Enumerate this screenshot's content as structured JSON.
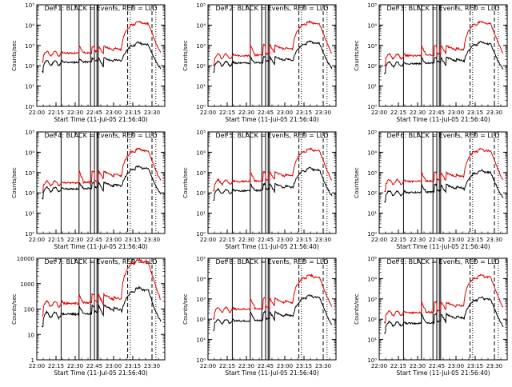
{
  "colors": {
    "events": "#000000",
    "lld": "#dd0000",
    "axis": "#000000",
    "background": "#ffffff"
  },
  "chart_data": [
    {
      "type": "line",
      "title": "Det 1: BLACK = Events, RED = LLD",
      "xlabel": "Start Time (11-Jul-05 21:56:40)",
      "ylabel": "Counts/sec",
      "yscale": "log",
      "ylim": [
        1,
        100000
      ],
      "ytick_labels": [
        "10⁰",
        "10¹",
        "10²",
        "10³",
        "10⁴",
        "10⁵"
      ],
      "xlim": [
        "22:00",
        "23:40"
      ],
      "xtick_labels": [
        "22:00",
        "22:15",
        "22:30",
        "22:45",
        "23:00",
        "23:15",
        "23:30"
      ],
      "series": [
        {
          "name": "Events",
          "color": "#000000",
          "start": "22:04",
          "end": "23:37",
          "base": 140,
          "burst": 250,
          "peak": 1400
        },
        {
          "name": "LLD",
          "color": "#dd0000",
          "start": "22:04",
          "end": "23:37",
          "base": 400,
          "burst": 1000,
          "peak": 15000
        }
      ]
    },
    {
      "type": "line",
      "title": "Det 2: BLACK = Events, RED = LLD",
      "xlabel": "Start Time (11-Jul-05 21:56:40)",
      "ylabel": "Counts/sec",
      "yscale": "log",
      "ylim": [
        1,
        100000
      ],
      "ytick_labels": [
        "10⁰",
        "10¹",
        "10²",
        "10³",
        "10⁴",
        "10⁵"
      ],
      "xlim": [
        "22:00",
        "23:40"
      ],
      "xtick_labels": [
        "22:00",
        "22:15",
        "22:30",
        "22:45",
        "23:00",
        "23:15",
        "23:30"
      ],
      "series": [
        {
          "name": "Events",
          "color": "#000000",
          "start": "22:04",
          "end": "23:37",
          "base": 130,
          "burst": 300,
          "peak": 1600
        },
        {
          "name": "LLD",
          "color": "#dd0000",
          "start": "22:04",
          "end": "23:37",
          "base": 300,
          "burst": 1200,
          "peak": 15000
        }
      ]
    },
    {
      "type": "line",
      "title": "Det 3: BLACK = Events, RED = LLD",
      "xlabel": "Start Time (11-Jul-05 21:56:40)",
      "ylabel": "Counts/sec",
      "yscale": "log",
      "ylim": [
        1,
        100000
      ],
      "ytick_labels": [
        "10⁰",
        "10¹",
        "10²",
        "10³",
        "10⁴",
        "10⁵"
      ],
      "xlim": [
        "22:00",
        "23:40"
      ],
      "xtick_labels": [
        "22:00",
        "22:15",
        "22:30",
        "22:45",
        "23:00",
        "23:15",
        "23:30"
      ],
      "series": [
        {
          "name": "Events",
          "color": "#000000",
          "start": "22:04",
          "end": "23:37",
          "base": 120,
          "burst": 280,
          "peak": 1500
        },
        {
          "name": "LLD",
          "color": "#dd0000",
          "start": "22:04",
          "end": "23:37",
          "base": 300,
          "burst": 1100,
          "peak": 15000
        }
      ]
    },
    {
      "type": "line",
      "title": "Det 4: BLACK = Events, RED = LLD",
      "xlabel": "Start Time (11-Jul-05 21:56:40)",
      "ylabel": "Counts/sec",
      "yscale": "log",
      "ylim": [
        1,
        100000
      ],
      "ytick_labels": [
        "10⁰",
        "10¹",
        "10²",
        "10³",
        "10⁴",
        "10⁵"
      ],
      "xlim": [
        "22:00",
        "23:40"
      ],
      "xtick_labels": [
        "22:00",
        "22:15",
        "22:30",
        "22:45",
        "23:00",
        "23:15",
        "23:30"
      ],
      "series": [
        {
          "name": "Events",
          "color": "#000000",
          "start": "22:04",
          "end": "23:37",
          "base": 150,
          "burst": 350,
          "peak": 2000
        },
        {
          "name": "LLD",
          "color": "#dd0000",
          "start": "22:04",
          "end": "23:37",
          "base": 300,
          "burst": 1300,
          "peak": 15000
        }
      ]
    },
    {
      "type": "line",
      "title": "Det 5: BLACK = Events, RED = LLD",
      "xlabel": "Start Time (11-Jul-05 21:56:40)",
      "ylabel": "Counts/sec",
      "yscale": "log",
      "ylim": [
        1,
        100000
      ],
      "ytick_labels": [
        "10⁰",
        "10¹",
        "10²",
        "10³",
        "10⁴",
        "10⁵"
      ],
      "xlim": [
        "22:00",
        "23:40"
      ],
      "xtick_labels": [
        "22:00",
        "22:15",
        "22:30",
        "22:45",
        "23:00",
        "23:15",
        "23:30"
      ],
      "series": [
        {
          "name": "Events",
          "color": "#000000",
          "start": "22:04",
          "end": "23:37",
          "base": 120,
          "burst": 300,
          "peak": 1700
        },
        {
          "name": "LLD",
          "color": "#dd0000",
          "start": "22:04",
          "end": "23:37",
          "base": 350,
          "burst": 1200,
          "peak": 15000
        }
      ]
    },
    {
      "type": "line",
      "title": "Det 6: BLACK = Events, RED = LLD",
      "xlabel": "Start Time (11-Jul-05 21:56:40)",
      "ylabel": "Counts/sec",
      "yscale": "log",
      "ylim": [
        1,
        100000
      ],
      "ytick_labels": [
        "10⁰",
        "10¹",
        "10²",
        "10³",
        "10⁴",
        "10⁵"
      ],
      "xlim": [
        "22:00",
        "23:40"
      ],
      "xtick_labels": [
        "22:00",
        "22:15",
        "22:30",
        "22:45",
        "23:00",
        "23:15",
        "23:30"
      ],
      "series": [
        {
          "name": "Events",
          "color": "#000000",
          "start": "22:04",
          "end": "23:37",
          "base": 100,
          "burst": 280,
          "peak": 1300
        },
        {
          "name": "LLD",
          "color": "#dd0000",
          "start": "22:04",
          "end": "23:37",
          "base": 350,
          "burst": 1100,
          "peak": 15000
        }
      ]
    },
    {
      "type": "line",
      "title": "Det 7: BLACK = Events, RED = LLD",
      "xlabel": "Start Time (11-Jul-05 21:56:40)",
      "ylabel": "Counts/sec",
      "yscale": "log",
      "ylim": [
        1,
        10000
      ],
      "ytick_labels": [
        "1",
        "10",
        "100",
        "1000",
        "10000"
      ],
      "xlim": [
        "22:00",
        "23:40"
      ],
      "xtick_labels": [
        "22:00",
        "22:15",
        "22:30",
        "22:45",
        "23:00",
        "23:15",
        "23:30"
      ],
      "series": [
        {
          "name": "Events",
          "color": "#000000",
          "start": "22:04",
          "end": "23:37",
          "base": 60,
          "burst": 150,
          "peak": 700
        },
        {
          "name": "LLD",
          "color": "#dd0000",
          "start": "22:04",
          "end": "23:37",
          "base": 160,
          "burst": 400,
          "peak": 9000
        }
      ]
    },
    {
      "type": "line",
      "title": "Det 8: BLACK = Events, RED = LLD",
      "xlabel": "Start Time (11-Jul-05 21:56:40)",
      "ylabel": "Counts/sec",
      "yscale": "log",
      "ylim": [
        1,
        100000
      ],
      "ytick_labels": [
        "10⁰",
        "10¹",
        "10²",
        "10³",
        "10⁴",
        "10⁵"
      ],
      "xlim": [
        "22:00",
        "23:40"
      ],
      "xtick_labels": [
        "22:00",
        "22:15",
        "22:30",
        "22:45",
        "23:00",
        "23:15",
        "23:30"
      ],
      "series": [
        {
          "name": "Events",
          "color": "#000000",
          "start": "22:04",
          "end": "23:37",
          "base": 80,
          "burst": 250,
          "peak": 1500
        },
        {
          "name": "LLD",
          "color": "#dd0000",
          "start": "22:04",
          "end": "23:37",
          "base": 300,
          "burst": 1200,
          "peak": 15000
        }
      ]
    },
    {
      "type": "line",
      "title": "Det 9: BLACK = Events, RED = LLD",
      "xlabel": "Start Time (11-Jul-05 21:56:40)",
      "ylabel": "Counts/sec",
      "yscale": "log",
      "ylim": [
        1,
        100000
      ],
      "ytick_labels": [
        "10⁰",
        "10¹",
        "10²",
        "10³",
        "10⁴",
        "10⁵"
      ],
      "xlim": [
        "22:00",
        "23:40"
      ],
      "xtick_labels": [
        "22:00",
        "22:15",
        "22:30",
        "22:45",
        "23:00",
        "23:15",
        "23:30"
      ],
      "series": [
        {
          "name": "Events",
          "color": "#000000",
          "start": "22:04",
          "end": "23:37",
          "base": 60,
          "burst": 200,
          "peak": 1200
        },
        {
          "name": "LLD",
          "color": "#dd0000",
          "start": "22:04",
          "end": "23:37",
          "base": 200,
          "burst": 800,
          "peak": 15000
        }
      ]
    }
  ],
  "solid_markers": [
    "22:19",
    "22:33",
    "22:42",
    "22:45",
    "22:47",
    "22:48"
  ],
  "dashed_markers": [
    "23:11",
    "23:30"
  ],
  "dotted_markers": [
    "23:13",
    "23:33"
  ]
}
